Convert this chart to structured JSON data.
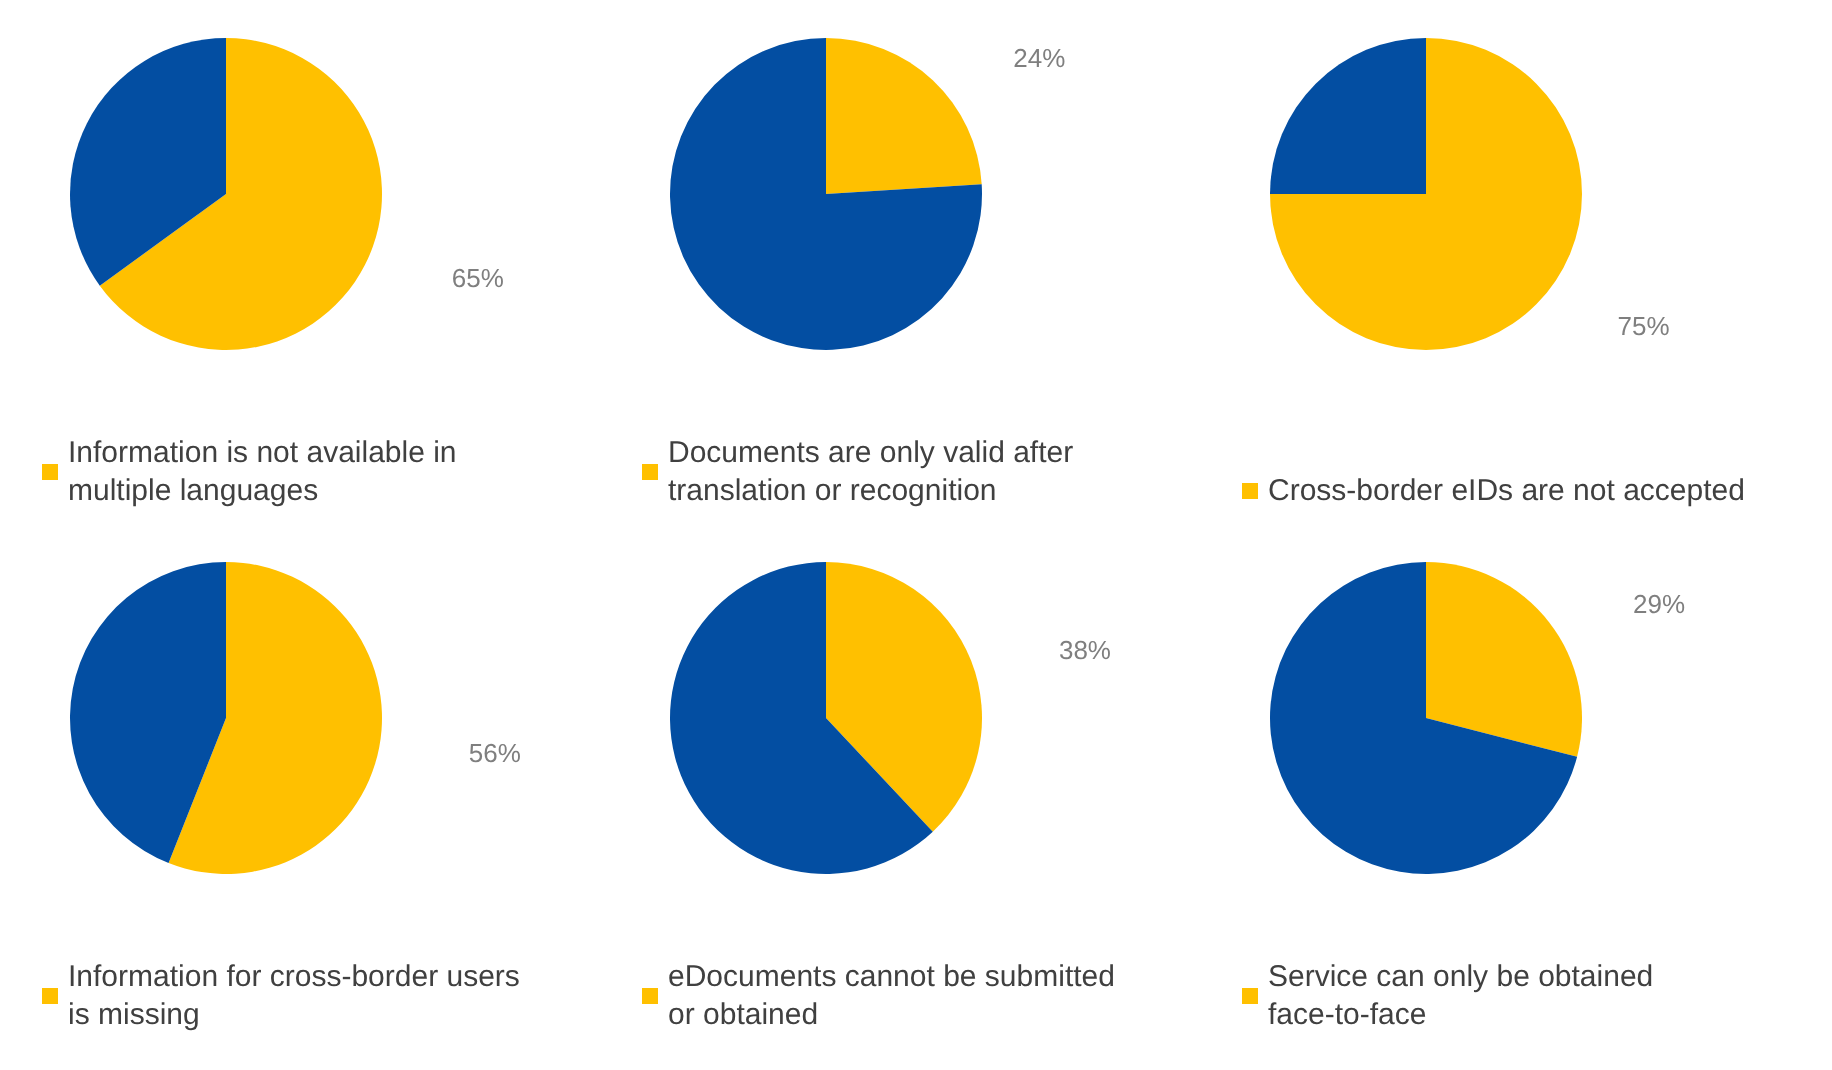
{
  "chart_data": [
    {
      "type": "pie",
      "categories": [
        "Information is not available in multiple languages",
        null
      ],
      "values": [
        65,
        35
      ],
      "colors": [
        "#ffc000",
        "#034ea2"
      ],
      "value_labels": [
        "65%",
        null
      ],
      "legend": "bottom"
    },
    {
      "type": "pie",
      "categories": [
        "Documents are only valid after translation or recognition",
        null
      ],
      "values": [
        24,
        76
      ],
      "colors": [
        "#ffc000",
        "#034ea2"
      ],
      "value_labels": [
        "24%",
        null
      ],
      "legend": "bottom"
    },
    {
      "type": "pie",
      "categories": [
        "Cross-border eIDs are not accepted",
        null
      ],
      "values": [
        75,
        25
      ],
      "colors": [
        "#ffc000",
        "#034ea2"
      ],
      "value_labels": [
        "75%",
        null
      ],
      "legend": "bottom"
    },
    {
      "type": "pie",
      "categories": [
        "Information for cross-border users is missing",
        null
      ],
      "values": [
        56,
        44
      ],
      "colors": [
        "#ffc000",
        "#034ea2"
      ],
      "value_labels": [
        "56%",
        null
      ],
      "legend": "bottom"
    },
    {
      "type": "pie",
      "categories": [
        "eDocuments cannot be submitted or obtained",
        null
      ],
      "values": [
        38,
        62
      ],
      "colors": [
        "#ffc000",
        "#034ea2"
      ],
      "value_labels": [
        "38%",
        null
      ],
      "legend": "bottom"
    },
    {
      "type": "pie",
      "categories": [
        "Service can only be obtained face-to-face",
        null
      ],
      "values": [
        29,
        71
      ],
      "colors": [
        "#ffc000",
        "#034ea2"
      ],
      "value_labels": [
        "29%",
        null
      ],
      "legend": "bottom"
    }
  ]
}
